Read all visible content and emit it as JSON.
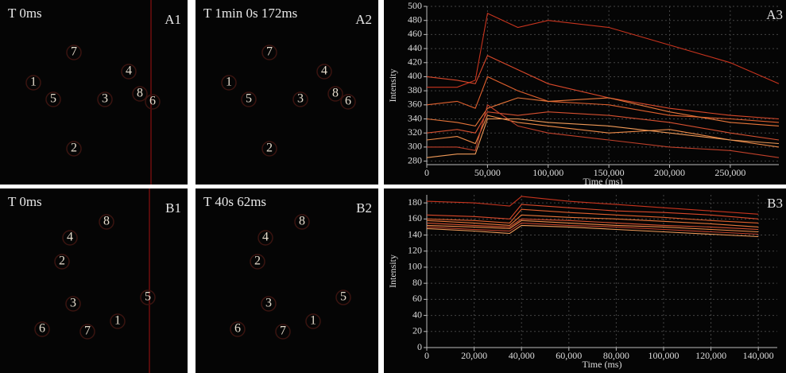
{
  "panels": [
    {
      "title": "T 0ms",
      "label": "A1",
      "cells": [
        "1",
        "5",
        "7",
        "3",
        "4",
        "8",
        "6",
        "2"
      ]
    },
    {
      "title": "T 1min 0s 172ms",
      "label": "A2",
      "cells": [
        "1",
        "5",
        "7",
        "3",
        "4",
        "8",
        "6",
        "2"
      ]
    },
    {
      "title": "T 0ms",
      "label": "B1",
      "cells": [
        "8",
        "4",
        "2",
        "5",
        "3",
        "1",
        "6",
        "7"
      ]
    },
    {
      "title": "T 40s 62ms",
      "label": "B2",
      "cells": [
        "8",
        "4",
        "2",
        "5",
        "3",
        "1",
        "6",
        "7"
      ]
    }
  ],
  "chart_data": [
    {
      "type": "line",
      "label": "A3",
      "xlabel": "Time (ms)",
      "ylabel": "Intensity",
      "grid": true,
      "x": [
        0,
        25000,
        40000,
        50000,
        75000,
        100000,
        150000,
        200000,
        250000,
        290000
      ],
      "xlim": [
        0,
        290000
      ],
      "xticks": [
        0,
        {
          "value": 50000,
          "label": "50,000"
        },
        {
          "value": 100000,
          "label": "100,000"
        },
        {
          "value": 150000,
          "label": "150,000"
        },
        {
          "value": 200000,
          "label": "200,000"
        },
        {
          "value": 250000,
          "label": "250,000"
        }
      ],
      "ylim": [
        275,
        500
      ],
      "yticks": [
        280,
        300,
        320,
        340,
        360,
        380,
        400,
        420,
        440,
        460,
        480,
        500
      ],
      "series": [
        {
          "color": "#c8341e",
          "values": [
            385,
            385,
            395,
            490,
            470,
            480,
            470,
            445,
            420,
            390
          ]
        },
        {
          "color": "#d9482a",
          "values": [
            400,
            395,
            390,
            430,
            410,
            390,
            370,
            355,
            345,
            340
          ]
        },
        {
          "color": "#e0602e",
          "values": [
            360,
            365,
            355,
            400,
            380,
            365,
            360,
            345,
            340,
            335
          ]
        },
        {
          "color": "#e8763a",
          "values": [
            340,
            335,
            330,
            355,
            370,
            365,
            370,
            350,
            335,
            330
          ]
        },
        {
          "color": "#d65030",
          "values": [
            320,
            325,
            320,
            350,
            345,
            350,
            345,
            335,
            320,
            310
          ]
        },
        {
          "color": "#ee8a48",
          "values": [
            310,
            315,
            305,
            345,
            335,
            330,
            320,
            325,
            310,
            300
          ]
        },
        {
          "color": "#c0402a",
          "values": [
            300,
            300,
            295,
            360,
            330,
            320,
            310,
            300,
            295,
            285
          ]
        },
        {
          "color": "#f09a58",
          "values": [
            285,
            290,
            290,
            340,
            340,
            335,
            330,
            320,
            310,
            305
          ]
        }
      ]
    },
    {
      "type": "line",
      "label": "B3",
      "xlabel": "Time (ms)",
      "ylabel": "Intensity",
      "grid": true,
      "x": [
        0,
        20000,
        35000,
        40000,
        60000,
        80000,
        100000,
        120000,
        140000
      ],
      "xlim": [
        0,
        148000
      ],
      "xticks": [
        0,
        {
          "value": 20000,
          "label": "20,000"
        },
        {
          "value": 40000,
          "label": "40,000"
        },
        {
          "value": 60000,
          "label": "60,000"
        },
        {
          "value": 80000,
          "label": "80,000"
        },
        {
          "value": 100000,
          "label": "100,000"
        },
        {
          "value": 120000,
          "label": "120,000"
        },
        {
          "value": 140000,
          "label": "140,000"
        }
      ],
      "ylim": [
        0,
        190
      ],
      "yticks": [
        0,
        20,
        40,
        60,
        80,
        100,
        120,
        140,
        160,
        180
      ],
      "series": [
        {
          "color": "#c8341e",
          "values": [
            182,
            180,
            176,
            188,
            182,
            178,
            174,
            170,
            166
          ]
        },
        {
          "color": "#d9482a",
          "values": [
            165,
            163,
            160,
            178,
            174,
            170,
            168,
            165,
            160
          ]
        },
        {
          "color": "#e0602e",
          "values": [
            160,
            158,
            155,
            172,
            168,
            165,
            162,
            158,
            155
          ]
        },
        {
          "color": "#e8763a",
          "values": [
            158,
            155,
            152,
            165,
            162,
            160,
            157,
            154,
            150
          ]
        },
        {
          "color": "#d65030",
          "values": [
            155,
            152,
            150,
            160,
            158,
            155,
            152,
            150,
            147
          ]
        },
        {
          "color": "#ee8a48",
          "values": [
            152,
            150,
            148,
            158,
            155,
            152,
            150,
            147,
            144
          ]
        },
        {
          "color": "#c0402a",
          "values": [
            150,
            147,
            145,
            155,
            152,
            150,
            147,
            144,
            141
          ]
        },
        {
          "color": "#f09a58",
          "values": [
            148,
            145,
            142,
            152,
            150,
            147,
            144,
            141,
            138
          ]
        }
      ]
    }
  ]
}
